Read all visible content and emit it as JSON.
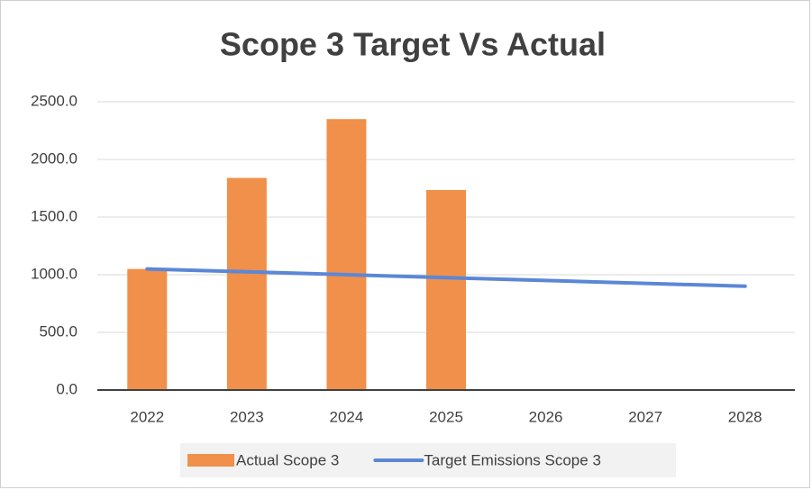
{
  "chart_data": {
    "type": "combo",
    "title": "Scope 3 Target Vs Actual",
    "categories": [
      "2022",
      "2023",
      "2024",
      "2025",
      "2026",
      "2027",
      "2028"
    ],
    "series": [
      {
        "name": "Actual Scope 3",
        "type": "bar",
        "color": "#f0904a",
        "values": [
          1050,
          1840,
          2350,
          1735,
          null,
          null,
          null
        ]
      },
      {
        "name": "Target Emissions Scope 3",
        "type": "line",
        "color": "#5b87d6",
        "values": [
          1050,
          1025,
          1000,
          975,
          950,
          925,
          900
        ]
      }
    ],
    "ylim": [
      0,
      2500
    ],
    "yticks": [
      {
        "value": 0,
        "label": "0.0"
      },
      {
        "value": 500,
        "label": "500.0"
      },
      {
        "value": 1000,
        "label": "1000.0"
      },
      {
        "value": 1500,
        "label": "1500.0"
      },
      {
        "value": 2000,
        "label": "2000.0"
      },
      {
        "value": 2500,
        "label": "2500.0"
      }
    ],
    "grid": true,
    "legend": "bottom"
  }
}
